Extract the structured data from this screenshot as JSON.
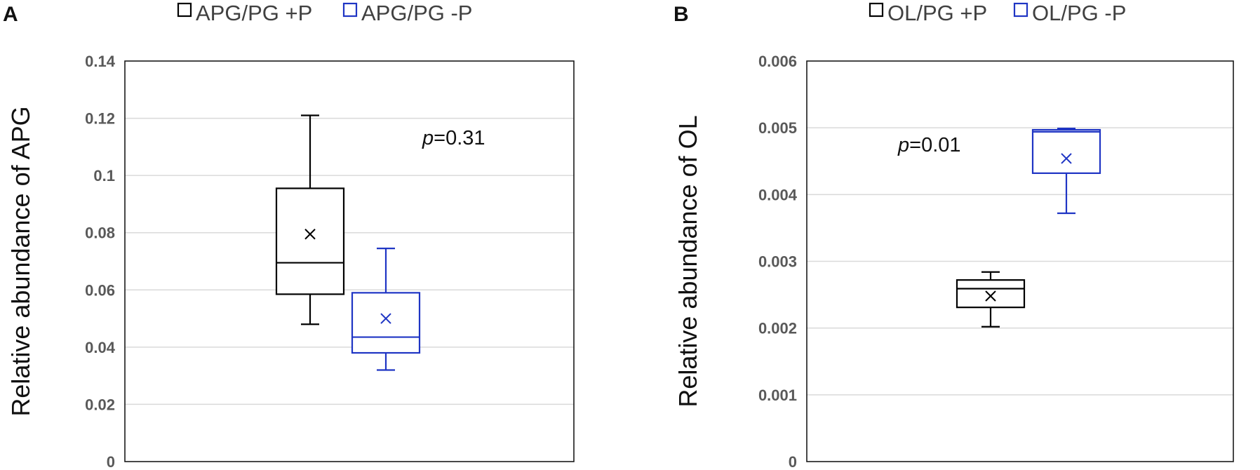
{
  "chart_data": [
    {
      "type": "box",
      "panel_label": "A",
      "title": "",
      "xlabel": "",
      "ylabel": "Relative abundance of APG",
      "ylim": [
        0,
        0.14
      ],
      "yticks": [
        "0",
        "0.02",
        "0.04",
        "0.06",
        "0.08",
        "0.1",
        "0.12",
        "0.14"
      ],
      "grid": true,
      "legend_position": "top",
      "annotation": {
        "prefix": "p",
        "value": "=0.31"
      },
      "series": [
        {
          "name": "APG/PG +P",
          "color": "#000000",
          "min": 0.048,
          "q1": 0.0585,
          "median": 0.0695,
          "q3": 0.0955,
          "max": 0.121,
          "mean": 0.0795
        },
        {
          "name": "APG/PG -P",
          "color": "#1f35c4",
          "min": 0.032,
          "q1": 0.038,
          "median": 0.0435,
          "q3": 0.059,
          "max": 0.0745,
          "mean": 0.05
        }
      ]
    },
    {
      "type": "box",
      "panel_label": "B",
      "title": "",
      "xlabel": "",
      "ylabel": "Relative abundance of OL",
      "ylim": [
        0,
        0.006
      ],
      "yticks": [
        "0",
        "0.001",
        "0.002",
        "0.003",
        "0.004",
        "0.005",
        "0.006"
      ],
      "grid": true,
      "legend_position": "top",
      "annotation": {
        "prefix": "p",
        "value": "=0.01"
      },
      "series": [
        {
          "name": "OL/PG +P",
          "color": "#000000",
          "min": 0.00202,
          "q1": 0.00231,
          "median": 0.00259,
          "q3": 0.00272,
          "max": 0.00284,
          "mean": 0.00248
        },
        {
          "name": "OL/PG -P",
          "color": "#1f35c4",
          "min": 0.00372,
          "q1": 0.00432,
          "median": 0.00494,
          "q3": 0.00497,
          "max": 0.00499,
          "mean": 0.00454
        }
      ]
    }
  ]
}
